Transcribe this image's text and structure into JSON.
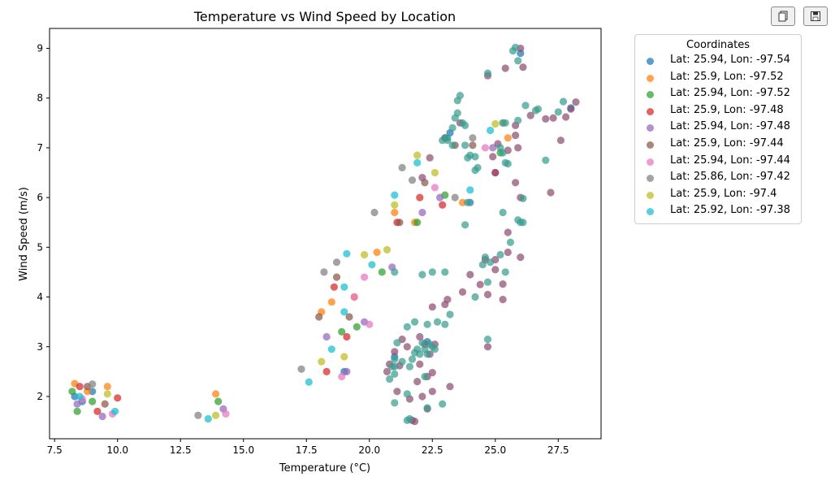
{
  "toolbar": {
    "copy_icon": "copy-icon",
    "save_icon": "save-icon"
  },
  "legend": {
    "title": "Coordinates"
  },
  "chart_data": {
    "type": "scatter",
    "title": "Temperature vs Wind Speed by Location",
    "xlabel": "Temperature (°C)",
    "ylabel": "Wind Speed (m/s)",
    "xlim": [
      7.3,
      29.2
    ],
    "ylim": [
      1.15,
      9.4
    ],
    "xticks": [
      "7.5",
      "10.0",
      "12.5",
      "15.0",
      "17.5",
      "20.0",
      "22.5",
      "25.0",
      "27.5"
    ],
    "yticks": [
      "2",
      "3",
      "4",
      "5",
      "6",
      "7",
      "8",
      "9"
    ],
    "grid": false,
    "legend_position": "outside-top-right",
    "series": [
      {
        "name": "Lat: 25.94, Lon: -97.54",
        "color": "#1f77b4",
        "points": [
          [
            8.3,
            2.0
          ],
          [
            8.6,
            1.9
          ],
          [
            9.0,
            2.1
          ],
          [
            19.0,
            2.5
          ],
          [
            21.0,
            2.8
          ],
          [
            22.3,
            3.1
          ],
          [
            24.0,
            5.9
          ],
          [
            23.2,
            7.3
          ],
          [
            26.0,
            8.9
          ],
          [
            28.0,
            7.8
          ]
        ]
      },
      {
        "name": "Lat: 25.9, Lon: -97.52",
        "color": "#ff7f0e",
        "points": [
          [
            8.3,
            2.26
          ],
          [
            8.8,
            2.1
          ],
          [
            9.6,
            2.2
          ],
          [
            13.9,
            2.05
          ],
          [
            18.1,
            3.7
          ],
          [
            18.5,
            3.9
          ],
          [
            19.4,
            4.0
          ],
          [
            20.3,
            4.9
          ],
          [
            21.0,
            5.7
          ],
          [
            21.8,
            5.5
          ],
          [
            23.7,
            5.9
          ],
          [
            25.5,
            7.2
          ]
        ]
      },
      {
        "name": "Lat: 25.94, Lon: -97.52",
        "color": "#2ca02c",
        "points": [
          [
            8.2,
            2.1
          ],
          [
            8.4,
            1.7
          ],
          [
            9.0,
            1.9
          ],
          [
            14.0,
            1.9
          ],
          [
            18.9,
            3.3
          ],
          [
            19.5,
            3.4
          ],
          [
            20.5,
            4.5
          ],
          [
            21.9,
            5.5
          ],
          [
            23.0,
            6.05
          ],
          [
            25.2,
            6.9
          ]
        ]
      },
      {
        "name": "Lat: 25.9, Lon: -97.48",
        "color": "#d62728",
        "points": [
          [
            8.5,
            2.2
          ],
          [
            9.2,
            1.7
          ],
          [
            10.0,
            1.97
          ],
          [
            18.3,
            2.5
          ],
          [
            18.6,
            4.2
          ],
          [
            19.1,
            3.2
          ],
          [
            21.1,
            5.5
          ],
          [
            22.0,
            6.0
          ],
          [
            22.9,
            5.85
          ],
          [
            25.0,
            6.5
          ]
        ]
      },
      {
        "name": "Lat: 25.94, Lon: -97.48",
        "color": "#9467bd",
        "points": [
          [
            8.4,
            1.85
          ],
          [
            9.4,
            1.6
          ],
          [
            14.2,
            1.75
          ],
          [
            18.3,
            3.2
          ],
          [
            19.1,
            2.5
          ],
          [
            19.8,
            3.5
          ],
          [
            20.9,
            4.6
          ],
          [
            22.1,
            5.7
          ],
          [
            22.8,
            6.0
          ],
          [
            24.9,
            7.0
          ]
        ]
      },
      {
        "name": "Lat: 25.9, Lon: -97.44",
        "color": "#8c564b",
        "points": [
          [
            8.8,
            2.2
          ],
          [
            9.5,
            1.85
          ],
          [
            18.0,
            3.6
          ],
          [
            18.7,
            4.4
          ],
          [
            19.2,
            3.6
          ],
          [
            21.2,
            5.5
          ],
          [
            22.2,
            6.3
          ],
          [
            23.4,
            7.05
          ],
          [
            24.1,
            7.05
          ]
        ]
      },
      {
        "name": "Lat: 25.94, Lon: -97.44",
        "color": "#e377c2",
        "points": [
          [
            8.6,
            1.95
          ],
          [
            9.8,
            1.65
          ],
          [
            14.3,
            1.65
          ],
          [
            18.9,
            2.4
          ],
          [
            19.4,
            4.0
          ],
          [
            19.8,
            4.4
          ],
          [
            20.0,
            3.45
          ],
          [
            22.6,
            6.2
          ],
          [
            24.6,
            7.0
          ]
        ]
      },
      {
        "name": "Lat: 25.86, Lon: -97.42",
        "color": "#7f7f7f",
        "points": [
          [
            9.0,
            2.25
          ],
          [
            13.2,
            1.62
          ],
          [
            17.3,
            2.55
          ],
          [
            18.2,
            4.5
          ],
          [
            18.7,
            4.7
          ],
          [
            20.2,
            5.7
          ],
          [
            21.3,
            6.6
          ],
          [
            21.7,
            6.35
          ],
          [
            23.4,
            6.0
          ],
          [
            24.1,
            7.2
          ]
        ]
      },
      {
        "name": "Lat: 25.9, Lon: -97.4",
        "color": "#bcbd22",
        "points": [
          [
            9.6,
            2.05
          ],
          [
            13.9,
            1.62
          ],
          [
            18.1,
            2.7
          ],
          [
            19.0,
            2.8
          ],
          [
            19.8,
            4.85
          ],
          [
            20.7,
            4.95
          ],
          [
            21.0,
            5.85
          ],
          [
            21.9,
            6.85
          ],
          [
            22.6,
            6.5
          ],
          [
            25.3,
            7.5
          ],
          [
            25.0,
            7.48
          ]
        ]
      },
      {
        "name": "Lat: 25.92, Lon: -97.38",
        "color": "#17becf",
        "points": [
          [
            8.5,
            2.0
          ],
          [
            9.9,
            1.7
          ],
          [
            13.6,
            1.55
          ],
          [
            17.6,
            2.29
          ],
          [
            18.5,
            2.95
          ],
          [
            19.0,
            4.2
          ],
          [
            19.0,
            3.7
          ],
          [
            19.1,
            4.87
          ],
          [
            20.1,
            4.65
          ],
          [
            21.0,
            6.05
          ],
          [
            21.9,
            6.7
          ],
          [
            24.0,
            6.15
          ],
          [
            24.8,
            7.35
          ]
        ]
      }
    ],
    "overlay_series": [
      {
        "color": "#8e4e72",
        "points": [
          [
            24.7,
            8.45
          ],
          [
            25.4,
            8.6
          ],
          [
            26.0,
            9.0
          ],
          [
            26.1,
            8.62
          ],
          [
            28.2,
            7.92
          ],
          [
            28.0,
            7.78
          ],
          [
            27.8,
            7.62
          ],
          [
            27.0,
            7.58
          ],
          [
            27.3,
            7.6
          ],
          [
            26.4,
            7.65
          ],
          [
            25.8,
            7.45
          ],
          [
            25.8,
            7.25
          ],
          [
            25.1,
            7.08
          ],
          [
            24.9,
            6.82
          ],
          [
            25.0,
            6.5
          ],
          [
            25.5,
            6.95
          ],
          [
            25.9,
            7.0
          ],
          [
            26.0,
            6.0
          ],
          [
            27.2,
            6.1
          ],
          [
            27.6,
            7.15
          ],
          [
            23.0,
            7.2
          ],
          [
            23.6,
            7.5
          ],
          [
            22.4,
            6.8
          ],
          [
            22.1,
            6.4
          ],
          [
            25.8,
            6.3
          ],
          [
            25.5,
            5.3
          ],
          [
            25.5,
            4.9
          ],
          [
            26.0,
            4.8
          ],
          [
            25.0,
            4.55
          ],
          [
            24.0,
            4.45
          ],
          [
            24.4,
            4.25
          ],
          [
            23.7,
            4.1
          ],
          [
            24.7,
            4.05
          ],
          [
            24.6,
            4.75
          ],
          [
            25.0,
            4.75
          ],
          [
            25.3,
            4.26
          ],
          [
            25.3,
            3.95
          ],
          [
            23.1,
            3.95
          ],
          [
            23.0,
            3.85
          ],
          [
            22.5,
            3.8
          ],
          [
            22.0,
            3.2
          ],
          [
            21.3,
            3.15
          ],
          [
            21.0,
            2.9
          ],
          [
            20.7,
            2.5
          ],
          [
            21.5,
            3.0
          ],
          [
            22.2,
            3.05
          ],
          [
            22.6,
            3.05
          ],
          [
            22.4,
            2.85
          ],
          [
            22.0,
            2.65
          ],
          [
            22.5,
            2.48
          ],
          [
            22.3,
            2.4
          ],
          [
            23.2,
            2.2
          ],
          [
            22.5,
            2.1
          ],
          [
            22.1,
            2.0
          ],
          [
            21.6,
            1.95
          ],
          [
            21.1,
            2.1
          ],
          [
            22.3,
            1.75
          ],
          [
            21.8,
            1.5
          ],
          [
            21.7,
            1.52
          ],
          [
            21.9,
            2.3
          ],
          [
            21.2,
            2.62
          ],
          [
            20.8,
            2.65
          ],
          [
            24.7,
            3.0
          ]
        ]
      },
      {
        "color": "#3a9d8f",
        "points": [
          [
            24.7,
            8.5
          ],
          [
            25.7,
            8.95
          ],
          [
            25.8,
            9.02
          ],
          [
            25.9,
            8.75
          ],
          [
            27.7,
            7.93
          ],
          [
            26.6,
            7.75
          ],
          [
            26.2,
            7.85
          ],
          [
            26.7,
            7.78
          ],
          [
            27.5,
            7.72
          ],
          [
            25.4,
            7.5
          ],
          [
            25.3,
            7.5
          ],
          [
            25.9,
            7.55
          ],
          [
            25.2,
            7.0
          ],
          [
            25.3,
            6.9
          ],
          [
            25.4,
            6.7
          ],
          [
            23.8,
            7.45
          ],
          [
            23.7,
            7.5
          ],
          [
            23.5,
            7.95
          ],
          [
            23.6,
            8.05
          ],
          [
            23.5,
            7.7
          ],
          [
            23.4,
            7.6
          ],
          [
            23.3,
            7.4
          ],
          [
            23.0,
            7.2
          ],
          [
            23.1,
            7.15
          ],
          [
            22.9,
            7.15
          ],
          [
            23.3,
            7.05
          ],
          [
            23.8,
            7.05
          ],
          [
            24.2,
            6.82
          ],
          [
            24.0,
            6.85
          ],
          [
            23.9,
            6.8
          ],
          [
            24.3,
            6.6
          ],
          [
            24.2,
            6.55
          ],
          [
            26.1,
            5.98
          ],
          [
            26.0,
            5.5
          ],
          [
            25.9,
            5.55
          ],
          [
            25.3,
            5.7
          ],
          [
            25.6,
            5.1
          ],
          [
            25.4,
            4.5
          ],
          [
            25.2,
            4.85
          ],
          [
            24.6,
            4.8
          ],
          [
            24.5,
            4.65
          ],
          [
            24.8,
            4.7
          ],
          [
            24.7,
            4.3
          ],
          [
            24.2,
            4.0
          ],
          [
            23.2,
            3.65
          ],
          [
            23.0,
            3.45
          ],
          [
            22.7,
            3.5
          ],
          [
            22.3,
            3.45
          ],
          [
            21.5,
            3.4
          ],
          [
            21.8,
            3.5
          ],
          [
            22.5,
            3.0
          ],
          [
            22.4,
            3.05
          ],
          [
            22.2,
            2.95
          ],
          [
            22.1,
            3.08
          ],
          [
            21.9,
            2.95
          ],
          [
            21.8,
            2.88
          ],
          [
            22.0,
            2.85
          ],
          [
            21.7,
            2.75
          ],
          [
            21.6,
            2.6
          ],
          [
            21.3,
            2.7
          ],
          [
            21.0,
            2.75
          ],
          [
            21.0,
            2.45
          ],
          [
            21.1,
            3.08
          ],
          [
            21.0,
            2.6
          ],
          [
            20.8,
            2.35
          ],
          [
            20.9,
            2.6
          ],
          [
            22.6,
            2.95
          ],
          [
            22.3,
            2.85
          ],
          [
            22.2,
            2.4
          ],
          [
            21.5,
            2.05
          ],
          [
            21.0,
            1.87
          ],
          [
            22.3,
            1.77
          ],
          [
            21.5,
            1.52
          ],
          [
            21.6,
            1.55
          ],
          [
            22.9,
            1.85
          ],
          [
            24.7,
            3.15
          ],
          [
            23.0,
            4.5
          ],
          [
            22.5,
            4.5
          ],
          [
            21.0,
            4.5
          ],
          [
            22.1,
            4.45
          ],
          [
            23.8,
            5.45
          ],
          [
            23.9,
            5.9
          ],
          [
            26.1,
            5.5
          ],
          [
            23.1,
            7.2
          ],
          [
            27.0,
            6.75
          ],
          [
            25.5,
            6.68
          ]
        ]
      }
    ]
  }
}
